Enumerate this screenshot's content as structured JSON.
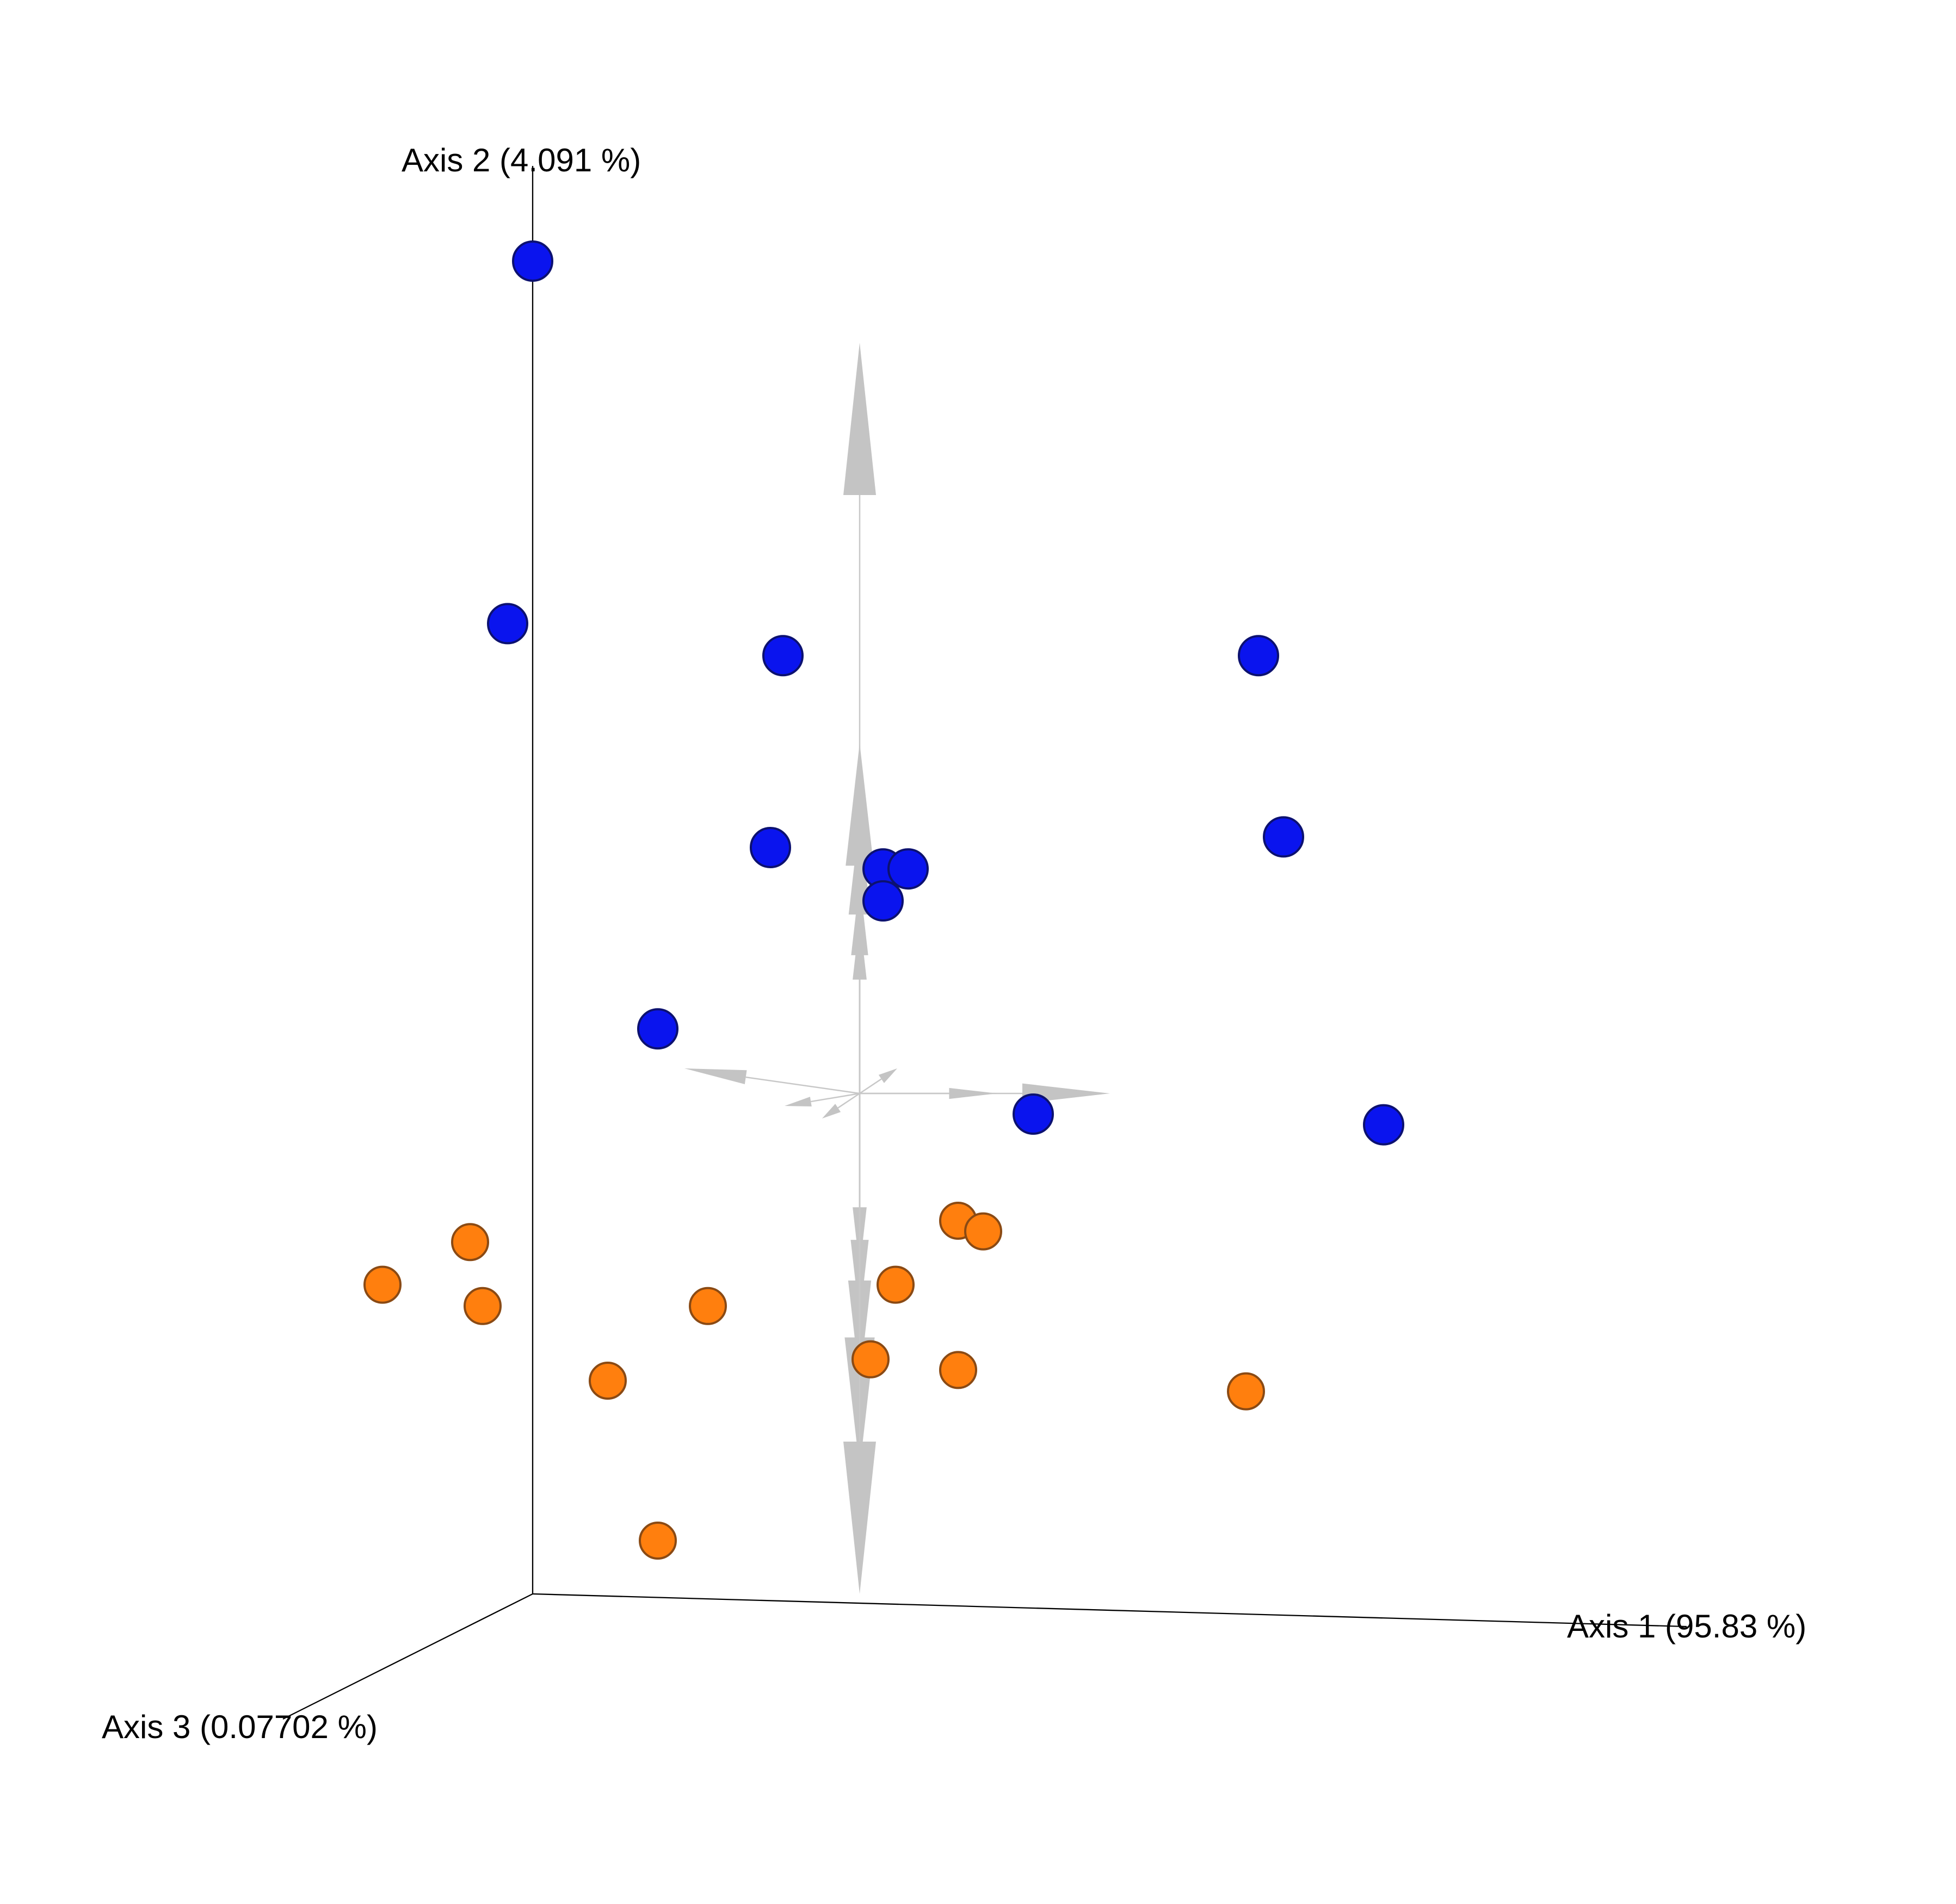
{
  "chart_data": {
    "type": "scatter",
    "dimensions": 3,
    "grid": false,
    "legend": "none",
    "axes": [
      {
        "id": "axis1",
        "label": "Axis 1 (95.83 %)"
      },
      {
        "id": "axis2",
        "label": "Axis 2 (4.091 %)"
      },
      {
        "id": "axis3",
        "label": "Axis 3 (0.07702 %)"
      }
    ],
    "colors": {
      "group_blue": "#0a14ee",
      "group_blue_edge": "#0c1170",
      "group_orange": "#ff7f0e",
      "group_orange_edge": "#8a4a14",
      "biplot_arrow": "#c4c4c4",
      "axis": "#000000"
    },
    "series": [
      {
        "group": "group_blue",
        "points": [
          [
            0.0,
            1.0
          ],
          [
            -0.02,
            0.66
          ],
          [
            0.2,
            0.63
          ],
          [
            0.58,
            0.63
          ],
          [
            0.19,
            0.45
          ],
          [
            0.28,
            0.43
          ],
          [
            0.3,
            0.43
          ],
          [
            0.28,
            0.4
          ],
          [
            0.1,
            0.28
          ],
          [
            0.4,
            0.2
          ],
          [
            0.6,
            0.46
          ],
          [
            0.68,
            0.19
          ]
        ]
      },
      {
        "group": "group_orange",
        "points": [
          [
            -0.05,
            0.08
          ],
          [
            -0.12,
            0.04
          ],
          [
            -0.04,
            0.02
          ],
          [
            0.14,
            0.02
          ],
          [
            0.29,
            0.04
          ],
          [
            0.34,
            0.1
          ],
          [
            0.36,
            0.09
          ],
          [
            0.06,
            -0.05
          ],
          [
            0.27,
            -0.03
          ],
          [
            0.34,
            -0.04
          ],
          [
            0.57,
            -0.06
          ],
          [
            0.1,
            -0.2
          ]
        ]
      }
    ],
    "biplot_arrows": [
      [
        0.0,
        0.6
      ],
      [
        0.0,
        0.28
      ],
      [
        0.0,
        0.22
      ],
      [
        0.0,
        0.17
      ],
      [
        0.0,
        0.14
      ],
      [
        0.2,
        0.0
      ],
      [
        0.11,
        0.0
      ],
      [
        -0.14,
        0.02
      ],
      [
        -0.06,
        -0.01
      ],
      [
        -0.03,
        -0.02
      ],
      [
        0.03,
        0.02
      ],
      [
        0.0,
        -0.14
      ],
      [
        0.0,
        -0.18
      ],
      [
        0.0,
        -0.23
      ],
      [
        0.0,
        -0.3
      ],
      [
        0.0,
        -0.4
      ]
    ]
  }
}
